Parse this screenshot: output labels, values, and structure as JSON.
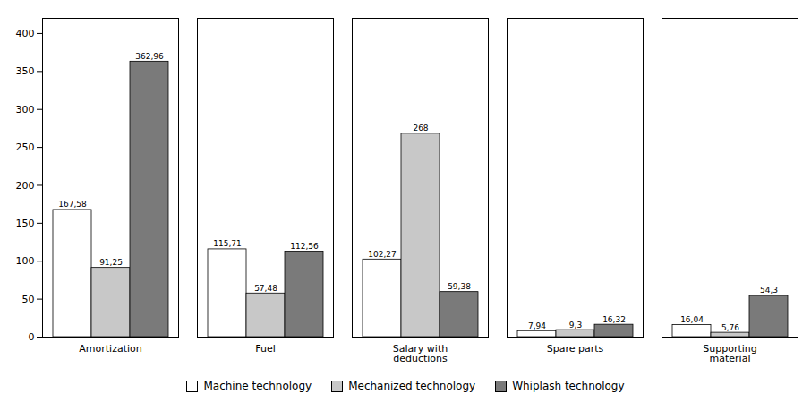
{
  "chart_data": {
    "type": "bar",
    "categories": [
      "Amortization",
      "Fuel",
      "Salary with\ndeductions",
      "Spare parts",
      "Supporting\nmaterial"
    ],
    "series": [
      {
        "name": "Machine technology",
        "color": "#ffffff",
        "values": [
          167.58,
          115.71,
          102.27,
          7.94,
          16.04
        ],
        "value_labels": [
          "167,58",
          "115,71",
          "102,27",
          "7,94",
          "16,04"
        ]
      },
      {
        "name": "Mechanized technology",
        "color": "#c8c8c8",
        "values": [
          91.25,
          57.48,
          268.0,
          9.3,
          5.76
        ],
        "value_labels": [
          "91,25",
          "57,48",
          "268",
          "9,3",
          "5,76"
        ]
      },
      {
        "name": "Whiplash technology",
        "color": "#7a7a7a",
        "values": [
          362.96,
          112.56,
          59.38,
          16.32,
          54.3
        ],
        "value_labels": [
          "362,96",
          "112,56",
          "59,38",
          "16,32",
          "54,3"
        ]
      }
    ],
    "ylim": [
      0,
      420
    ],
    "yticks": [
      0,
      50,
      100,
      150,
      200,
      250,
      300,
      350,
      400
    ],
    "grid": false,
    "legend": "bottom",
    "data_labels": true
  }
}
